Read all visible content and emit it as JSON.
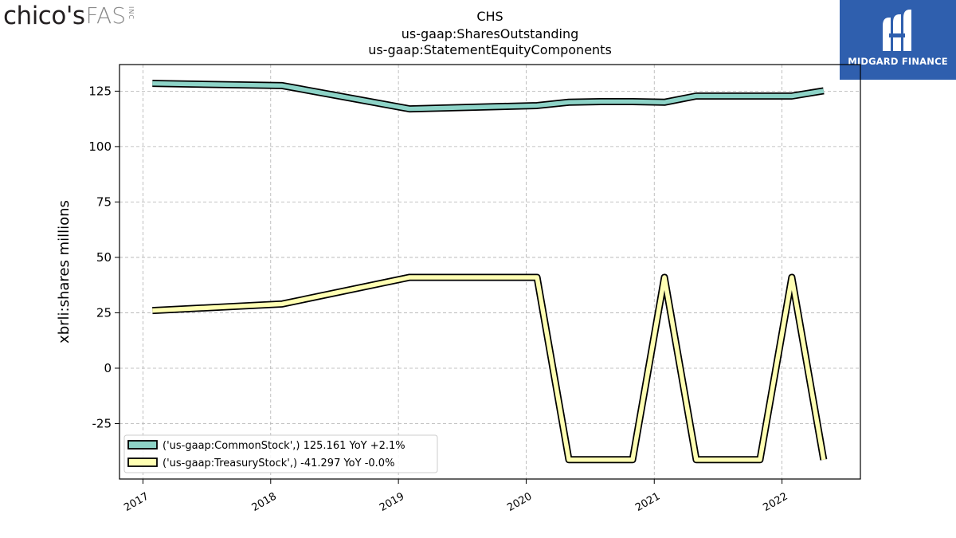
{
  "header": {
    "left_logo": {
      "primary": "chico's",
      "secondary": "FAS",
      "suffix": "INC"
    },
    "right_logo": {
      "text": "MIDGARD FINANCE",
      "bg_color": "#2f5fae",
      "icon": "midgard-finance-logo-icon"
    }
  },
  "chart_data": {
    "type": "line",
    "title_lines": [
      "CHS",
      "us-gaap:SharesOutstanding",
      "us-gaap:StatementEquityComponents"
    ],
    "ylabel": "xbrli:shares millions",
    "xlabel": "",
    "x_ticks": [
      "2017",
      "2018",
      "2019",
      "2020",
      "2021",
      "2022"
    ],
    "y_ticks": [
      125,
      100,
      75,
      50,
      25,
      0,
      -25
    ],
    "xlim": [
      "2016-10-26",
      "2022-08-13"
    ],
    "ylim": [
      -50,
      137
    ],
    "grid": true,
    "legend_position": "lower-left",
    "series": [
      {
        "name": "('us-gaap:CommonStock',) 125.161 YoY +2.1%",
        "color": "#8dd3c7",
        "x": [
          "2017-01-28",
          "2018-02-03",
          "2019-02-02",
          "2020-02-01",
          "2020-05-02",
          "2020-08-01",
          "2020-10-31",
          "2021-01-30",
          "2021-05-01",
          "2021-07-31",
          "2021-10-30",
          "2022-01-29",
          "2022-04-30"
        ],
        "y": [
          128.5,
          127.5,
          117.0,
          118.5,
          120.0,
          120.3,
          120.3,
          120.0,
          122.8,
          122.8,
          122.8,
          122.8,
          125.161
        ]
      },
      {
        "name": "('us-gaap:TreasuryStock',) -41.297 YoY -0.0%",
        "color": "#ffffb3",
        "x": [
          "2017-01-28",
          "2018-02-03",
          "2019-02-02",
          "2020-02-01",
          "2020-05-02",
          "2020-08-01",
          "2020-10-31",
          "2021-01-30",
          "2021-05-01",
          "2021-07-31",
          "2021-10-30",
          "2022-01-29",
          "2022-04-30"
        ],
        "y": [
          26.0,
          29.0,
          41.0,
          41.0,
          -41.3,
          -41.3,
          -41.3,
          41.0,
          -41.3,
          -41.3,
          -41.3,
          41.0,
          -41.297
        ]
      }
    ]
  }
}
